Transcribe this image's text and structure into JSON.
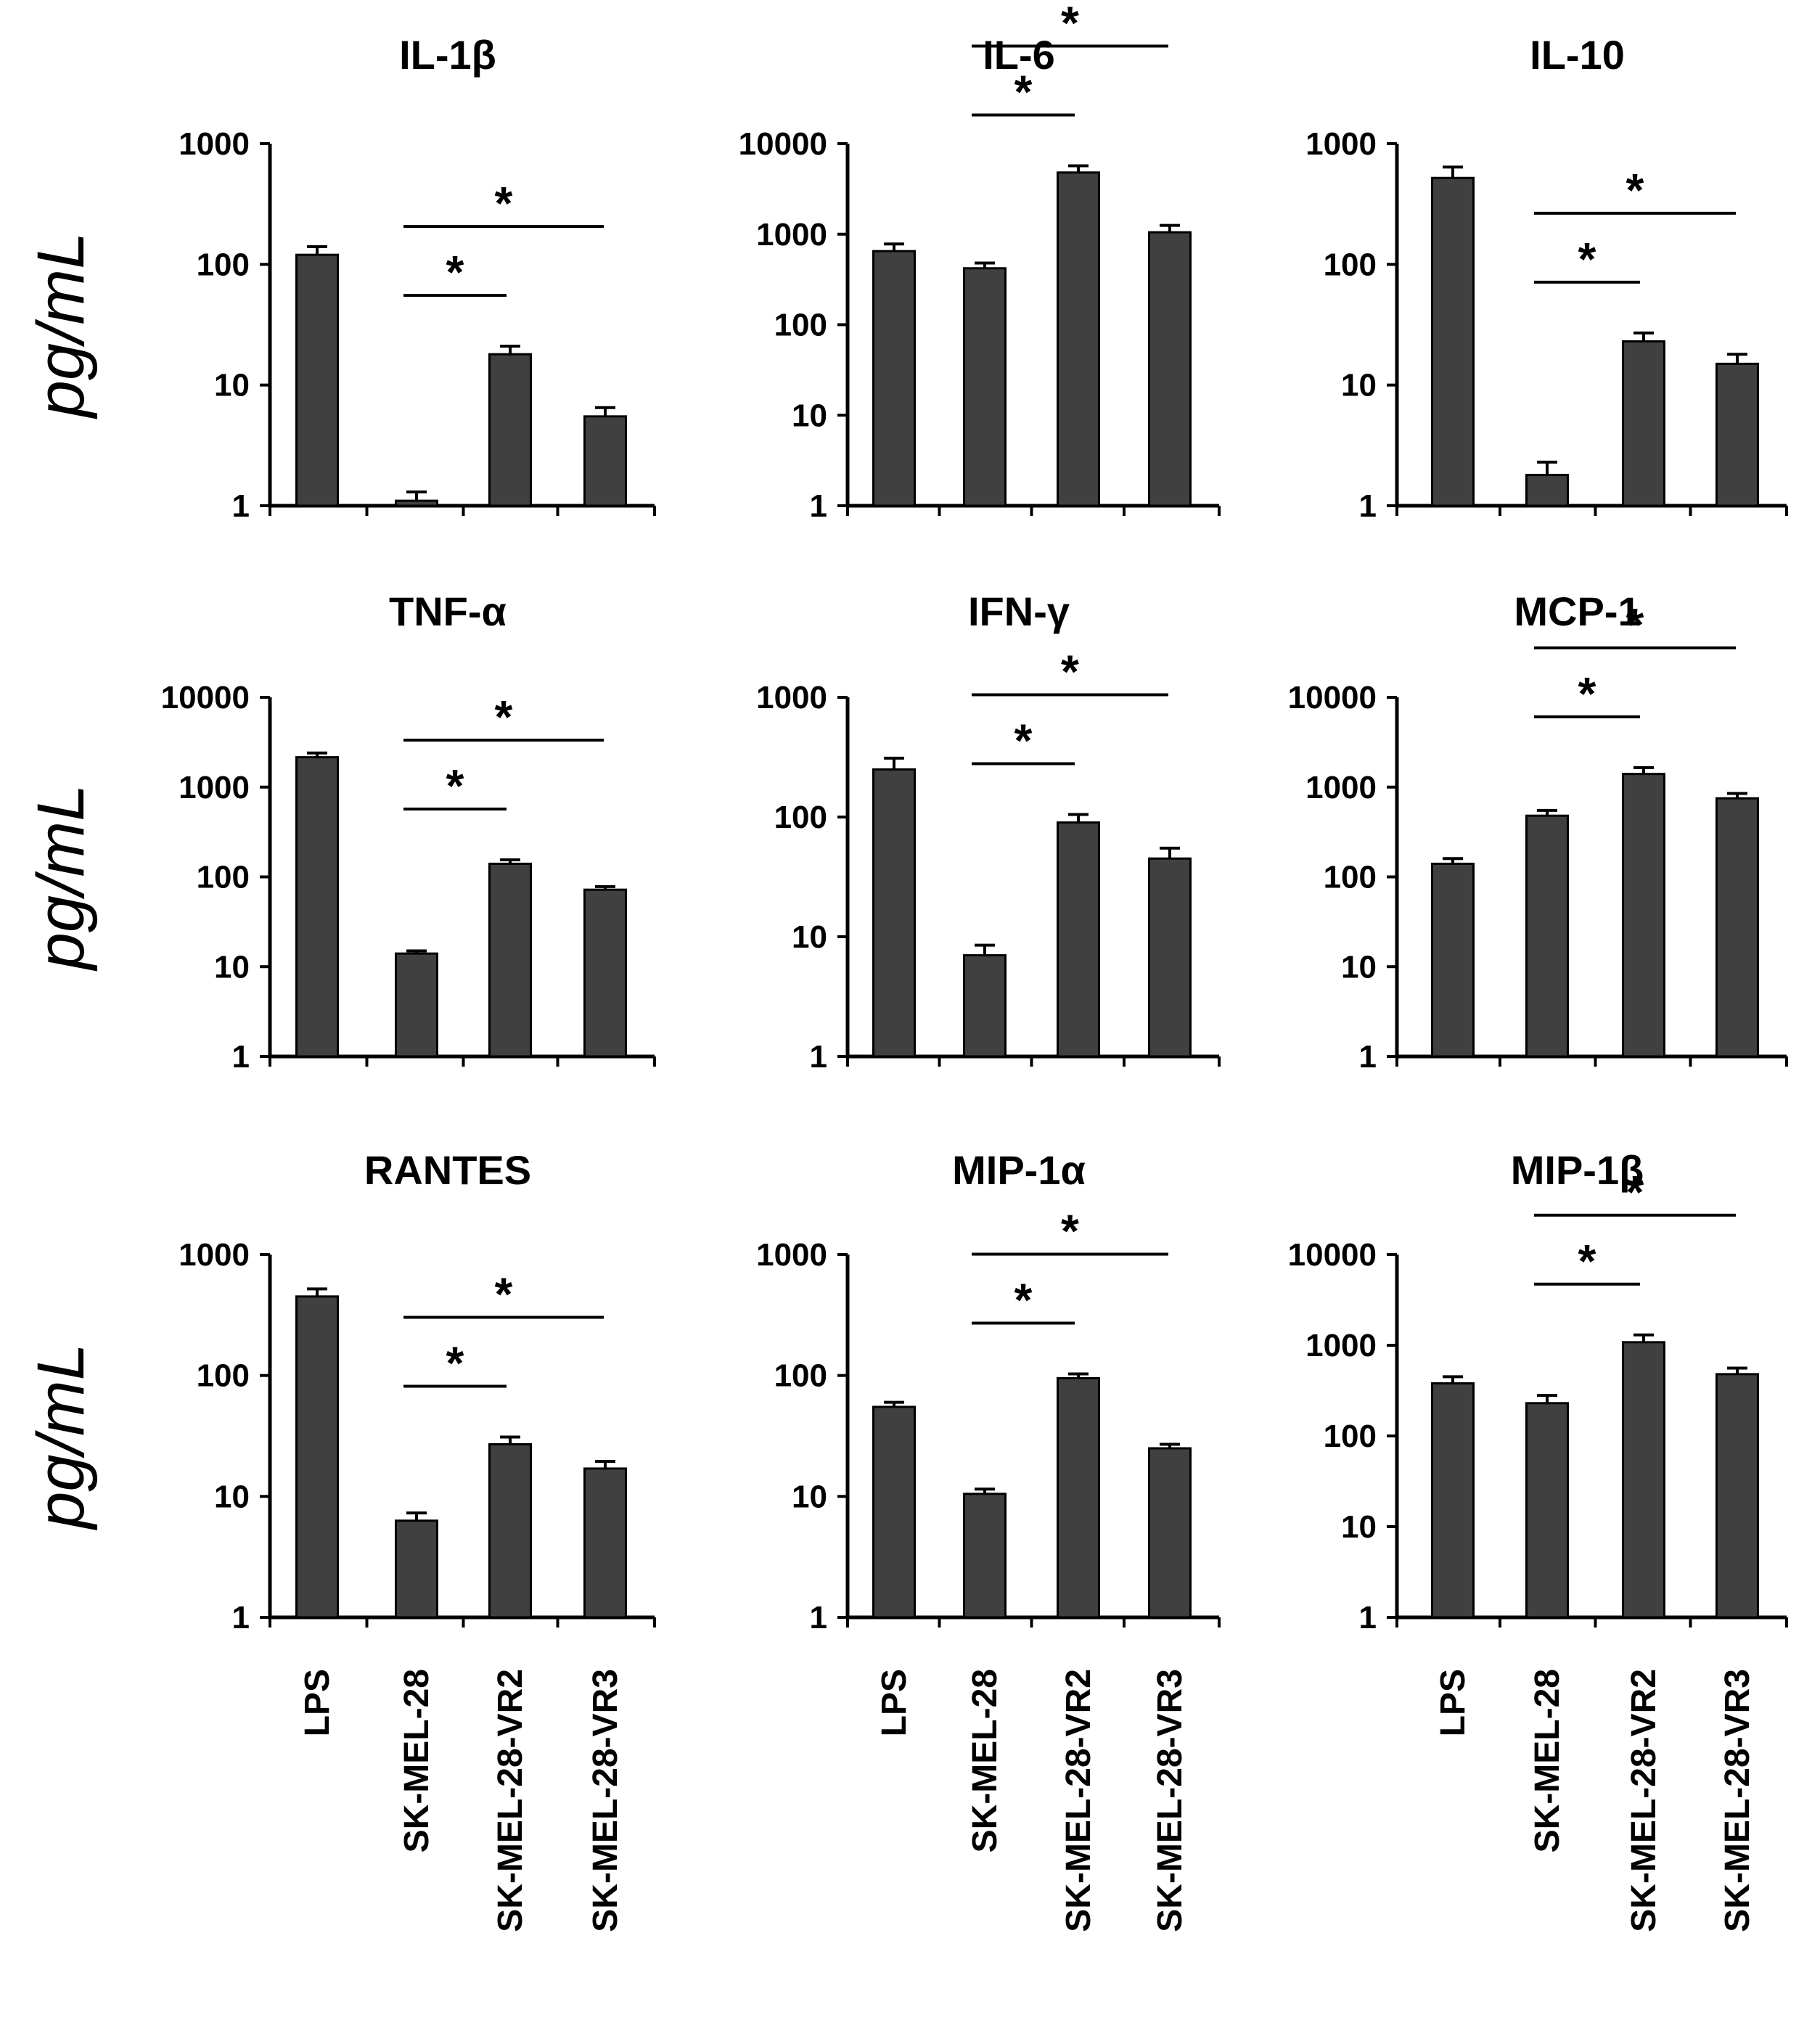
{
  "figure": {
    "ylabel": "pg/mL",
    "categories": [
      "LPS",
      "SK-MEL-28",
      "SK-MEL-28-VR2",
      "SK-MEL-28-VR3"
    ],
    "bar_color": "#404040"
  },
  "chart_data": [
    {
      "type": "bar",
      "title": "IL-1β",
      "yscale": "log",
      "ylim": [
        1,
        1000
      ],
      "ticks": [
        "1",
        "10",
        "100",
        "1000"
      ],
      "categories": [
        "LPS",
        "SK-MEL-28",
        "SK-MEL-28-VR2",
        "SK-MEL-28-VR3"
      ],
      "values": [
        120,
        1.1,
        18,
        5.5
      ],
      "errors": [
        140,
        1.3,
        21,
        6.5
      ],
      "significance": [
        {
          "from": 1,
          "to": 2,
          "label": "*"
        },
        {
          "from": 1,
          "to": 3,
          "label": "*"
        }
      ]
    },
    {
      "type": "bar",
      "title": "IL-6",
      "yscale": "log",
      "ylim": [
        1,
        10000
      ],
      "ticks": [
        "1",
        "10",
        "100",
        "1000",
        "10000"
      ],
      "categories": [
        "LPS",
        "SK-MEL-28",
        "SK-MEL-28-VR2",
        "SK-MEL-28-VR3"
      ],
      "values": [
        650,
        420,
        4800,
        1050
      ],
      "errors": [
        780,
        480,
        5700,
        1250
      ],
      "significance": [
        {
          "from": 1,
          "to": 2,
          "label": "*"
        },
        {
          "from": 1,
          "to": 3,
          "label": "*"
        }
      ]
    },
    {
      "type": "bar",
      "title": "IL-10",
      "yscale": "log",
      "ylim": [
        1,
        1000
      ],
      "ticks": [
        "1",
        "10",
        "100",
        "1000"
      ],
      "categories": [
        "LPS",
        "SK-MEL-28",
        "SK-MEL-28-VR2",
        "SK-MEL-28-VR3"
      ],
      "values": [
        520,
        1.8,
        23,
        15
      ],
      "errors": [
        640,
        2.3,
        27,
        18
      ],
      "significance": [
        {
          "from": 1,
          "to": 2,
          "label": "*"
        },
        {
          "from": 1,
          "to": 3,
          "label": "*"
        }
      ]
    },
    {
      "type": "bar",
      "title": "TNF-α",
      "yscale": "log",
      "ylim": [
        1,
        10000
      ],
      "ticks": [
        "1",
        "10",
        "100",
        "1000",
        "10000"
      ],
      "categories": [
        "LPS",
        "SK-MEL-28",
        "SK-MEL-28-VR2",
        "SK-MEL-28-VR3"
      ],
      "values": [
        2150,
        14,
        140,
        72
      ],
      "errors": [
        2400,
        15,
        155,
        78
      ],
      "significance": [
        {
          "from": 1,
          "to": 2,
          "label": "*"
        },
        {
          "from": 1,
          "to": 3,
          "label": "*"
        }
      ]
    },
    {
      "type": "bar",
      "title": "IFN-γ",
      "yscale": "log",
      "ylim": [
        1,
        1000
      ],
      "ticks": [
        "1",
        "10",
        "100",
        "1000"
      ],
      "categories": [
        "LPS",
        "SK-MEL-28",
        "SK-MEL-28-VR2",
        "SK-MEL-28-VR3"
      ],
      "values": [
        250,
        7,
        90,
        45
      ],
      "errors": [
        310,
        8.5,
        105,
        55
      ],
      "significance": [
        {
          "from": 1,
          "to": 2,
          "label": "*"
        },
        {
          "from": 1,
          "to": 3,
          "label": "*"
        }
      ]
    },
    {
      "type": "bar",
      "title": "MCP-1",
      "yscale": "log",
      "ylim": [
        1,
        10000
      ],
      "ticks": [
        "1",
        "10",
        "100",
        "1000",
        "10000"
      ],
      "categories": [
        "LPS",
        "SK-MEL-28",
        "SK-MEL-28-VR2",
        "SK-MEL-28-VR3"
      ],
      "values": [
        140,
        480,
        1400,
        750
      ],
      "errors": [
        160,
        550,
        1650,
        850
      ],
      "significance": [
        {
          "from": 1,
          "to": 2,
          "label": "*"
        },
        {
          "from": 1,
          "to": 3,
          "label": "*"
        }
      ]
    },
    {
      "type": "bar",
      "title": "RANTES",
      "yscale": "log",
      "ylim": [
        1,
        1000
      ],
      "ticks": [
        "1",
        "10",
        "100",
        "1000"
      ],
      "categories": [
        "LPS",
        "SK-MEL-28",
        "SK-MEL-28-VR2",
        "SK-MEL-28-VR3"
      ],
      "values": [
        450,
        6.3,
        27,
        17
      ],
      "errors": [
        520,
        7.3,
        31,
        19.5
      ],
      "significance": [
        {
          "from": 1,
          "to": 2,
          "label": "*"
        },
        {
          "from": 1,
          "to": 3,
          "label": "*"
        }
      ]
    },
    {
      "type": "bar",
      "title": "MIP-1α",
      "yscale": "log",
      "ylim": [
        1,
        1000
      ],
      "ticks": [
        "1",
        "10",
        "100",
        "1000"
      ],
      "categories": [
        "LPS",
        "SK-MEL-28",
        "SK-MEL-28-VR2",
        "SK-MEL-28-VR3"
      ],
      "values": [
        55,
        10.5,
        95,
        25
      ],
      "errors": [
        60,
        11.5,
        103,
        27
      ],
      "significance": [
        {
          "from": 1,
          "to": 2,
          "label": "*"
        },
        {
          "from": 1,
          "to": 3,
          "label": "*"
        }
      ]
    },
    {
      "type": "bar",
      "title": "MIP-1β",
      "yscale": "log",
      "ylim": [
        1,
        10000
      ],
      "ticks": [
        "1",
        "10",
        "100",
        "1000",
        "10000"
      ],
      "categories": [
        "LPS",
        "SK-MEL-28",
        "SK-MEL-28-VR2",
        "SK-MEL-28-VR3"
      ],
      "values": [
        380,
        230,
        1080,
        480
      ],
      "errors": [
        450,
        280,
        1300,
        560
      ],
      "significance": [
        {
          "from": 1,
          "to": 2,
          "label": "*"
        },
        {
          "from": 1,
          "to": 3,
          "label": "*"
        }
      ]
    }
  ]
}
